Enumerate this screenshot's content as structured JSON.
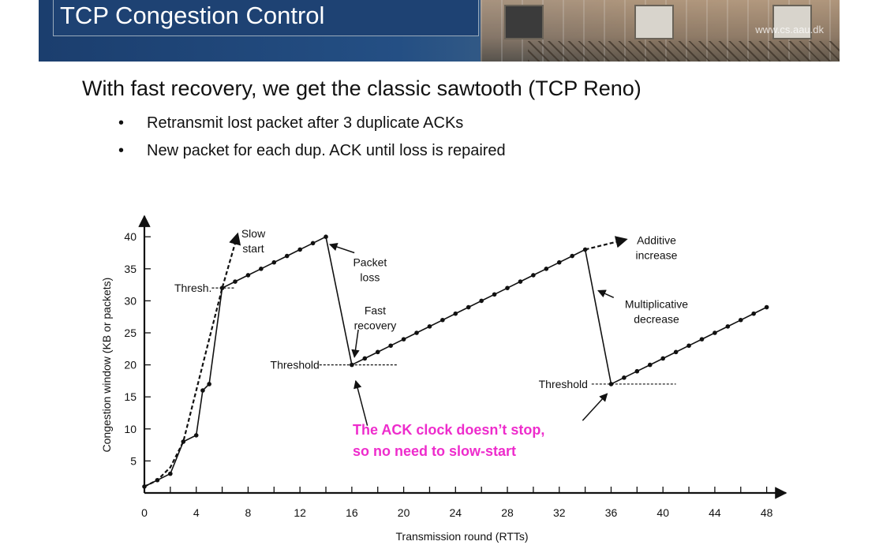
{
  "slide": {
    "title": "TCP Congestion Control",
    "watermark": "www.cs.aau.dk",
    "heading": "With fast recovery, we get the classic sawtooth (TCP Reno)",
    "bullets": [
      "Retransmit lost packet after 3 duplicate ACKs",
      "New packet for each dup. ACK until loss is repaired"
    ],
    "bullet_glyph": "•"
  },
  "chart_data": {
    "type": "line",
    "title": "",
    "xlabel": "Transmission round (RTTs)",
    "ylabel": "Congestion window  (KB or packets)",
    "xlim": [
      0,
      49
    ],
    "ylim": [
      0,
      42
    ],
    "x_ticks": [
      0,
      4,
      8,
      12,
      16,
      20,
      24,
      28,
      32,
      36,
      40,
      44,
      48
    ],
    "y_ticks": [
      5,
      10,
      15,
      20,
      25,
      30,
      35,
      40
    ],
    "series": [
      {
        "name": "",
        "style": "solid-with-markers",
        "points": [
          [
            0,
            1
          ],
          [
            1,
            2
          ],
          [
            2,
            3
          ],
          [
            3,
            8
          ],
          [
            4,
            9
          ],
          [
            4.5,
            16
          ],
          [
            5,
            17
          ],
          [
            6,
            32
          ],
          [
            7,
            33
          ],
          [
            8,
            34
          ],
          [
            9,
            35
          ],
          [
            10,
            36
          ],
          [
            11,
            37
          ],
          [
            12,
            38
          ],
          [
            13,
            39
          ],
          [
            14,
            40
          ],
          [
            16,
            20
          ],
          [
            17,
            21
          ],
          [
            18,
            22
          ],
          [
            19,
            23
          ],
          [
            20,
            24
          ],
          [
            21,
            25
          ],
          [
            22,
            26
          ],
          [
            23,
            27
          ],
          [
            24,
            28
          ],
          [
            25,
            29
          ],
          [
            26,
            30
          ],
          [
            27,
            31
          ],
          [
            28,
            32
          ],
          [
            29,
            33
          ],
          [
            30,
            34
          ],
          [
            31,
            35
          ],
          [
            32,
            36
          ],
          [
            33,
            37
          ],
          [
            34,
            38
          ],
          [
            36,
            17
          ],
          [
            37,
            18
          ],
          [
            38,
            19
          ],
          [
            39,
            20
          ],
          [
            40,
            21
          ],
          [
            41,
            22
          ],
          [
            42,
            23
          ],
          [
            43,
            24
          ],
          [
            44,
            25
          ],
          [
            45,
            26
          ],
          [
            46,
            27
          ],
          [
            47,
            28
          ],
          [
            48,
            29
          ]
        ]
      },
      {
        "name": "",
        "style": "dashed",
        "points": [
          [
            0,
            1
          ],
          [
            1,
            2
          ],
          [
            2,
            4
          ],
          [
            3,
            8
          ],
          [
            4,
            16
          ],
          [
            5,
            24
          ],
          [
            6,
            32
          ],
          [
            7,
            39
          ],
          [
            7.2,
            40.5
          ]
        ]
      },
      {
        "name": "",
        "style": "dashed",
        "points": [
          [
            34,
            38
          ],
          [
            37.2,
            39.6
          ]
        ]
      }
    ],
    "threshold_lines": [
      {
        "x": [
          5.2,
          7
        ],
        "y": 32
      },
      {
        "x": [
          13.5,
          19.5
        ],
        "y": 20
      },
      {
        "x": [
          34.5,
          41
        ],
        "y": 17
      }
    ],
    "annotations": [
      {
        "text": [
          "Slow",
          "start"
        ],
        "x": 8.4,
        "y": 40.5
      },
      {
        "text": [
          "Thresh."
        ],
        "x": 5.2,
        "y": 32
      },
      {
        "text": [
          "Packet",
          "loss"
        ],
        "x": 17.4,
        "y": 36
      },
      {
        "text": [
          "Fast",
          "recovery"
        ],
        "x": 17.8,
        "y": 28.5
      },
      {
        "text": [
          "Threshold"
        ],
        "x": 13.5,
        "y": 20
      },
      {
        "text": [
          "Additive",
          "increase"
        ],
        "x": 39.5,
        "y": 39.5
      },
      {
        "text": [
          "Multiplicative",
          "decrease"
        ],
        "x": 39.5,
        "y": 29.5
      },
      {
        "text": [
          "Threshold"
        ],
        "x": 34.2,
        "y": 17
      }
    ],
    "callout": [
      "The ACK clock doesn’t stop,",
      "so no need to slow-start"
    ],
    "colors": {
      "callout": "#ee2ccc",
      "line": "#111111"
    }
  }
}
